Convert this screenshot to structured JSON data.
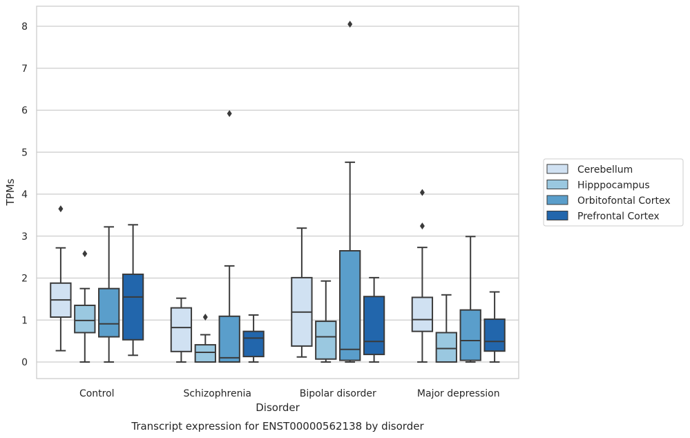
{
  "chart_data": {
    "type": "boxplot",
    "title": "",
    "caption": "Transcript expression for ENST00000562138 by disorder",
    "xlabel": "Disorder",
    "ylabel": "TPMs",
    "ylim": [
      -0.4,
      8.5
    ],
    "yticks": [
      0,
      1,
      2,
      3,
      4,
      5,
      6,
      7,
      8
    ],
    "grid": "horizontal",
    "legend_position": "right",
    "categories": [
      "Control",
      "Schizophrenia",
      "Bipolar disorder",
      "Major depression"
    ],
    "series": [
      {
        "name": "Cerebellum",
        "color": "#d0e1f2",
        "boxes": [
          {
            "whisker_low": 0.27,
            "q1": 1.07,
            "median": 1.48,
            "q3": 1.88,
            "whisker_high": 2.72,
            "outliers": [
              3.65
            ]
          },
          {
            "whisker_low": 0.0,
            "q1": 0.25,
            "median": 0.82,
            "q3": 1.29,
            "whisker_high": 1.52,
            "outliers": []
          },
          {
            "whisker_low": 0.12,
            "q1": 0.38,
            "median": 1.19,
            "q3": 2.01,
            "whisker_high": 3.19,
            "outliers": []
          },
          {
            "whisker_low": 0.0,
            "q1": 0.73,
            "median": 1.01,
            "q3": 1.54,
            "whisker_high": 2.73,
            "outliers": [
              3.24,
              4.04
            ]
          }
        ]
      },
      {
        "name": "Hipppocampus",
        "color": "#9ac8e0",
        "boxes": [
          {
            "whisker_low": 0.0,
            "q1": 0.7,
            "median": 0.99,
            "q3": 1.35,
            "whisker_high": 1.75,
            "outliers": [
              2.58
            ]
          },
          {
            "whisker_low": 0.0,
            "q1": 0.0,
            "median": 0.23,
            "q3": 0.41,
            "whisker_high": 0.65,
            "outliers": [
              1.07
            ]
          },
          {
            "whisker_low": 0.0,
            "q1": 0.07,
            "median": 0.6,
            "q3": 0.97,
            "whisker_high": 1.93,
            "outliers": []
          },
          {
            "whisker_low": 0.0,
            "q1": 0.0,
            "median": 0.32,
            "q3": 0.7,
            "whisker_high": 1.6,
            "outliers": []
          }
        ]
      },
      {
        "name": "Orbitofontal Cortex",
        "color": "#5a9ecb",
        "boxes": [
          {
            "whisker_low": 0.0,
            "q1": 0.6,
            "median": 0.91,
            "q3": 1.75,
            "whisker_high": 3.22,
            "outliers": []
          },
          {
            "whisker_low": 0.0,
            "q1": 0.0,
            "median": 0.1,
            "q3": 1.09,
            "whisker_high": 2.29,
            "outliers": [
              5.92
            ]
          },
          {
            "whisker_low": 0.0,
            "q1": 0.04,
            "median": 0.3,
            "q3": 2.65,
            "whisker_high": 4.76,
            "outliers": [
              8.05
            ]
          },
          {
            "whisker_low": 0.0,
            "q1": 0.04,
            "median": 0.51,
            "q3": 1.24,
            "whisker_high": 2.99,
            "outliers": []
          }
        ]
      },
      {
        "name": "Prefrontal Cortex",
        "color": "#2266ac",
        "boxes": [
          {
            "whisker_low": 0.16,
            "q1": 0.53,
            "median": 1.55,
            "q3": 2.09,
            "whisker_high": 3.27,
            "outliers": []
          },
          {
            "whisker_low": 0.0,
            "q1": 0.13,
            "median": 0.57,
            "q3": 0.73,
            "whisker_high": 1.12,
            "outliers": []
          },
          {
            "whisker_low": 0.0,
            "q1": 0.18,
            "median": 0.49,
            "q3": 1.56,
            "whisker_high": 2.01,
            "outliers": []
          },
          {
            "whisker_low": 0.0,
            "q1": 0.26,
            "median": 0.49,
            "q3": 1.02,
            "whisker_high": 1.67,
            "outliers": []
          }
        ]
      }
    ]
  }
}
